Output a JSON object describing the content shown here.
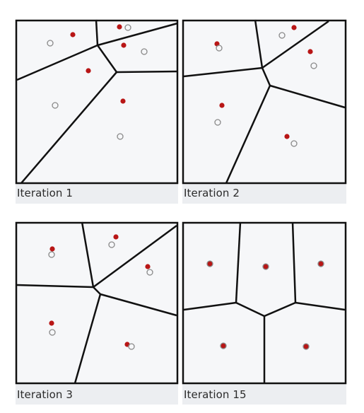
{
  "colors": {
    "frame": "#111111",
    "cell_edge": "#111111",
    "panel_fill": "#f6f7f9",
    "label_band": "#eceef1",
    "centroid": "#b81616",
    "seed_outline": "#8a8a8a"
  },
  "panels": [
    {
      "label": "Iteration 1"
    },
    {
      "label": "Iteration 2"
    },
    {
      "label": "Iteration 3"
    },
    {
      "label": "Iteration 15"
    }
  ]
}
